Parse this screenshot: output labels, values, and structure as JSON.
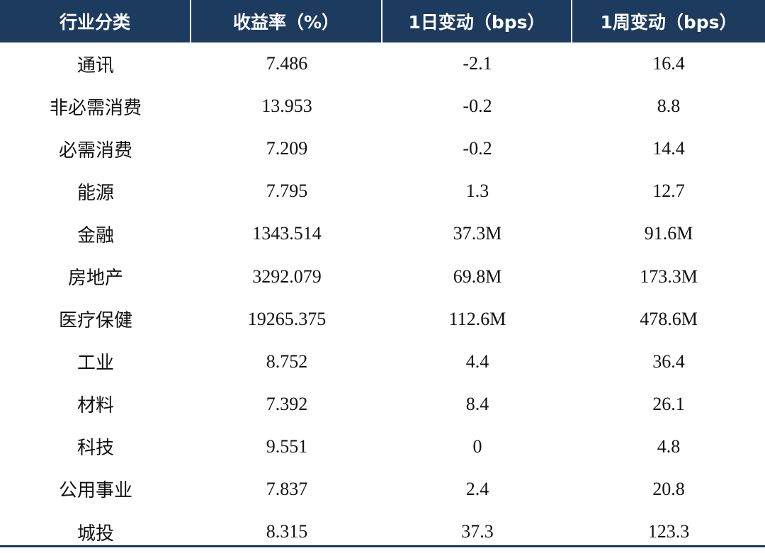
{
  "table": {
    "headers": [
      "行业分类",
      "收益率（%）",
      "1日变动（bps）",
      "1周变动（bps）"
    ],
    "rows": [
      [
        "通讯",
        "7.486",
        "-2.1",
        "16.4"
      ],
      [
        "非必需消费",
        "13.953",
        "-0.2",
        "8.8"
      ],
      [
        "必需消费",
        "7.209",
        "-0.2",
        "14.4"
      ],
      [
        "能源",
        "7.795",
        "1.3",
        "12.7"
      ],
      [
        "金融",
        "1343.514",
        "37.3M",
        "91.6M"
      ],
      [
        "房地产",
        "3292.079",
        "69.8M",
        "173.3M"
      ],
      [
        "医疗保健",
        "19265.375",
        "112.6M",
        "478.6M"
      ],
      [
        "工业",
        "8.752",
        "4.4",
        "36.4"
      ],
      [
        "材料",
        "7.392",
        "8.4",
        "26.1"
      ],
      [
        "科技",
        "9.551",
        "0",
        "4.8"
      ],
      [
        "公用事业",
        "7.837",
        "2.4",
        "20.8"
      ],
      [
        "城投",
        "8.315",
        "37.3",
        "123.3"
      ]
    ]
  },
  "colors": {
    "header_bg": "#1d3a5f",
    "header_text": "#ffffff",
    "body_text": "#111111"
  }
}
